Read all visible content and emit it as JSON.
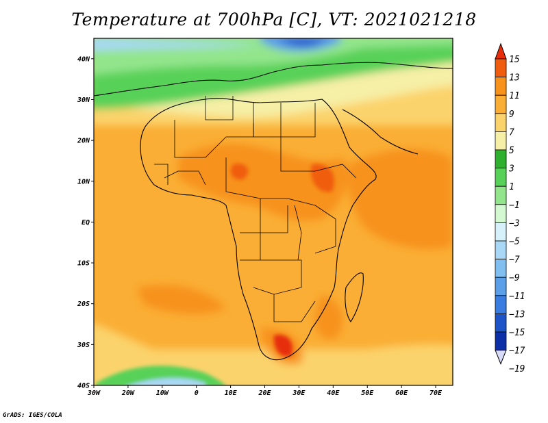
{
  "title": "Temperature at 700hPa [C], VT: 2021021218",
  "credit": "GrADS: IGES/COLA",
  "map": {
    "lon_range": [
      -30,
      75
    ],
    "lat_range": [
      -40,
      45
    ],
    "lon_ticks": [
      "30W",
      "20W",
      "10W",
      "0",
      "10E",
      "20E",
      "30E",
      "40E",
      "50E",
      "60E",
      "70E"
    ],
    "lat_ticks": [
      "40N",
      "30N",
      "20N",
      "10N",
      "EQ",
      "10S",
      "20S",
      "30S",
      "40S"
    ],
    "region": "Africa",
    "variable": "Temperature at 700hPa",
    "units": "C"
  },
  "colorbar": {
    "labels": [
      "15",
      "13",
      "11",
      "9",
      "7",
      "5",
      "3",
      "1",
      "−1",
      "−3",
      "−5",
      "−7",
      "−9",
      "−11",
      "−13",
      "−15",
      "−17",
      "−19"
    ],
    "colors": [
      "#e62e0a",
      "#f05d0f",
      "#f7921a",
      "#faae35",
      "#fbd36c",
      "#f6efa6",
      "#2fb02f",
      "#58d158",
      "#93e58c",
      "#d3f8d2",
      "#d7f1fb",
      "#a8d8f5",
      "#80bff0",
      "#5b9fe8",
      "#3a7de0",
      "#1d55c9",
      "#0c2ea6",
      "#040a72"
    ],
    "min": -19,
    "max": 15,
    "interval": 2
  }
}
